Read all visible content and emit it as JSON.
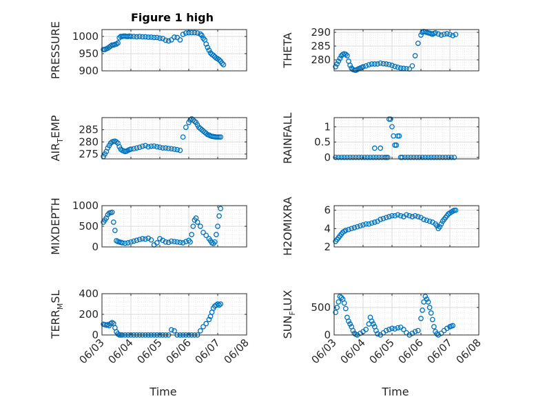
{
  "figure": {
    "title": "Figure 1 high"
  },
  "colors": {
    "marker": "#0072BD",
    "axis": "#262626",
    "grid": "#d9d9d9",
    "background": "#ffffff"
  },
  "chart_data": [
    {
      "type": "scatter",
      "id": "pressure",
      "ylabel": "PRESSURE",
      "ylim": [
        900,
        1020
      ],
      "yticks": [
        900,
        950,
        1000
      ],
      "yticklabels": [
        "900",
        "950",
        "1000"
      ],
      "xlim": [
        "06/03",
        "06/08"
      ],
      "xticks": [
        "06/03",
        "06/04",
        "06/05",
        "06/06",
        "06/07",
        "06/08"
      ],
      "xticks_labeled": false,
      "x": [
        3.05,
        3.1,
        3.15,
        3.2,
        3.25,
        3.3,
        3.35,
        3.4,
        3.45,
        3.5,
        3.55,
        3.6,
        3.65,
        3.7,
        3.75,
        3.8,
        3.85,
        3.9,
        3.95,
        4.0,
        4.1,
        4.2,
        4.3,
        4.4,
        4.5,
        4.6,
        4.7,
        4.8,
        4.9,
        5.0,
        5.1,
        5.2,
        5.3,
        5.4,
        5.5,
        5.6,
        5.7,
        5.8,
        5.9,
        6.0,
        6.1,
        6.2,
        6.3,
        6.4,
        6.45,
        6.5,
        6.55,
        6.6,
        6.65,
        6.7,
        6.75,
        6.8,
        6.85,
        6.9,
        6.95,
        7.0,
        7.05,
        7.1,
        7.15,
        7.2
      ],
      "y": [
        962,
        962,
        964,
        966,
        969,
        972,
        975,
        975,
        977,
        978,
        981,
        996,
        1000,
        1000,
        1001,
        1001,
        1000,
        1000,
        1001,
        1000,
        1000,
        999,
        1000,
        999,
        999,
        998,
        998,
        997,
        997,
        995,
        994,
        989,
        987,
        990,
        998,
        997,
        990,
        1006,
        1010,
        1011,
        1011,
        1011,
        1010,
        1007,
        1003,
        995,
        990,
        978,
        968,
        960,
        952,
        948,
        945,
        941,
        937,
        935,
        932,
        928,
        922,
        918
      ]
    },
    {
      "type": "scatter",
      "id": "theta",
      "ylabel": "THETA",
      "ylim": [
        276,
        291
      ],
      "yticks": [
        280,
        285,
        290
      ],
      "yticklabels": [
        "280",
        "285",
        "290"
      ],
      "xlim": [
        "06/03",
        "06/08"
      ],
      "xticks": [
        "06/03",
        "06/04",
        "06/05",
        "06/06",
        "06/07",
        "06/08"
      ],
      "xticks_labeled": false,
      "x": [
        3.05,
        3.1,
        3.15,
        3.2,
        3.25,
        3.3,
        3.35,
        3.4,
        3.45,
        3.5,
        3.55,
        3.6,
        3.65,
        3.7,
        3.75,
        3.8,
        3.85,
        3.9,
        3.95,
        4.0,
        4.1,
        4.2,
        4.3,
        4.4,
        4.5,
        4.6,
        4.7,
        4.8,
        4.9,
        5.0,
        5.1,
        5.2,
        5.3,
        5.4,
        5.5,
        5.6,
        5.7,
        5.8,
        5.9,
        6.0,
        6.05,
        6.1,
        6.15,
        6.2,
        6.25,
        6.3,
        6.35,
        6.4,
        6.45,
        6.5,
        6.6,
        6.7,
        6.8,
        6.9,
        7.0,
        7.1,
        7.2
      ],
      "y": [
        277.5,
        278.5,
        279.5,
        280.5,
        281.5,
        282,
        282.2,
        282,
        281.5,
        279.5,
        278,
        277,
        276.5,
        276.3,
        276.2,
        276.5,
        276.8,
        277,
        277.2,
        277.5,
        277.8,
        278.2,
        278.5,
        278.5,
        278.5,
        278.8,
        278.6,
        278.5,
        278.3,
        278,
        277.6,
        277.3,
        277,
        276.9,
        276.8,
        276.7,
        277.8,
        281.5,
        286,
        289,
        290,
        290.3,
        290.2,
        290,
        289.8,
        289.7,
        289.5,
        289.3,
        289.6,
        289.8,
        289.4,
        289,
        289.3,
        289.5,
        289.2,
        288.8,
        289.2
      ]
    },
    {
      "type": "scatter",
      "id": "air_temp",
      "ylabel": "AIR_TEMP",
      "ylim": [
        273,
        290
      ],
      "yticks": [
        275,
        280,
        285
      ],
      "yticklabels": [
        "275",
        "280",
        "285"
      ],
      "xlim": [
        "06/03",
        "06/08"
      ],
      "xticks": [
        "06/03",
        "06/04",
        "06/05",
        "06/06",
        "06/07",
        "06/08"
      ],
      "xticks_labeled": false,
      "x": [
        3.05,
        3.1,
        3.15,
        3.2,
        3.25,
        3.3,
        3.35,
        3.4,
        3.45,
        3.5,
        3.55,
        3.6,
        3.65,
        3.7,
        3.75,
        3.8,
        3.85,
        3.9,
        3.95,
        4.0,
        4.1,
        4.2,
        4.3,
        4.4,
        4.5,
        4.6,
        4.7,
        4.8,
        4.9,
        5.0,
        5.1,
        5.2,
        5.3,
        5.4,
        5.5,
        5.6,
        5.7,
        5.8,
        5.9,
        6.0,
        6.05,
        6.1,
        6.15,
        6.2,
        6.25,
        6.3,
        6.35,
        6.4,
        6.45,
        6.5,
        6.55,
        6.6,
        6.65,
        6.7,
        6.75,
        6.8,
        6.85,
        6.9,
        6.95,
        7.0,
        7.05,
        7.1
      ],
      "y": [
        274,
        275,
        276,
        277.5,
        278.5,
        279.5,
        280,
        280.2,
        280.3,
        280,
        279.5,
        278,
        277,
        276.5,
        276.3,
        276,
        276.2,
        276.5,
        276.8,
        277,
        277.2,
        277.5,
        277.8,
        278.2,
        278.5,
        278,
        278.2,
        278.3,
        278,
        277.8,
        277.5,
        277.5,
        277.3,
        277.2,
        277,
        276.8,
        276.5,
        282,
        286,
        288,
        289,
        289.5,
        289,
        288.5,
        288,
        287,
        286,
        285.5,
        285,
        284.5,
        284,
        283.5,
        283,
        282.8,
        282.5,
        282.3,
        282.2,
        282.1,
        282,
        282,
        282,
        282
      ]
    },
    {
      "type": "scatter",
      "id": "rainfall",
      "ylabel": "RAINFALL",
      "ylim": [
        -0.05,
        1.3
      ],
      "yticks": [
        0,
        0.5,
        1
      ],
      "yticklabels": [
        "0",
        "0.5",
        "1"
      ],
      "xlim": [
        "06/03",
        "06/08"
      ],
      "xticks": [
        "06/03",
        "06/04",
        "06/05",
        "06/06",
        "06/07",
        "06/08"
      ],
      "xticks_labeled": false,
      "x": [
        3.05,
        3.15,
        3.25,
        3.35,
        3.45,
        3.55,
        3.65,
        3.75,
        3.85,
        3.95,
        4.05,
        4.15,
        4.25,
        4.35,
        4.4,
        4.45,
        4.55,
        4.6,
        4.65,
        4.75,
        4.8,
        4.85,
        4.9,
        4.95,
        5.0,
        5.05,
        5.1,
        5.15,
        5.2,
        5.25,
        5.3,
        5.35,
        5.45,
        5.55,
        5.65,
        5.75,
        5.85,
        5.95,
        6.05,
        6.15,
        6.25,
        6.35,
        6.45,
        6.55,
        6.65,
        6.75,
        6.85,
        6.95,
        7.05,
        7.15
      ],
      "y": [
        0,
        0,
        0,
        0,
        0,
        0,
        0,
        0,
        0,
        0,
        0,
        0,
        0,
        0,
        0.3,
        0,
        0,
        0.3,
        0,
        0,
        0,
        0,
        1.25,
        1.25,
        1.0,
        0.7,
        0.4,
        0.4,
        0.7,
        0.7,
        0,
        0,
        0,
        0,
        0,
        0,
        0,
        0,
        0,
        0,
        0,
        0,
        0,
        0,
        0,
        0,
        0,
        0,
        0,
        0
      ]
    },
    {
      "type": "scatter",
      "id": "mixdepth",
      "ylabel": "MIXDEPTH",
      "ylim": [
        0,
        1000
      ],
      "yticks": [
        0,
        500,
        1000
      ],
      "yticklabels": [
        "0",
        "500",
        "1000"
      ],
      "xlim": [
        "06/03",
        "06/08"
      ],
      "xticks": [
        "06/03",
        "06/04",
        "06/05",
        "06/06",
        "06/07",
        "06/08"
      ],
      "xticks_labeled": false,
      "x": [
        3.05,
        3.1,
        3.15,
        3.2,
        3.25,
        3.3,
        3.35,
        3.4,
        3.45,
        3.5,
        3.55,
        3.6,
        3.65,
        3.7,
        3.8,
        3.9,
        4.0,
        4.1,
        4.2,
        4.3,
        4.4,
        4.5,
        4.6,
        4.7,
        4.8,
        4.9,
        5.0,
        5.1,
        5.2,
        5.3,
        5.4,
        5.5,
        5.6,
        5.7,
        5.8,
        5.9,
        6.0,
        6.05,
        6.1,
        6.15,
        6.2,
        6.25,
        6.3,
        6.4,
        6.5,
        6.6,
        6.7,
        6.75,
        6.8,
        6.85,
        6.9,
        6.95,
        7.0,
        7.05,
        7.1
      ],
      "y": [
        600,
        650,
        700,
        780,
        820,
        830,
        840,
        600,
        400,
        150,
        130,
        120,
        110,
        100,
        90,
        100,
        120,
        140,
        160,
        180,
        200,
        190,
        210,
        170,
        50,
        100,
        200,
        160,
        120,
        110,
        140,
        130,
        120,
        110,
        100,
        130,
        160,
        120,
        300,
        500,
        650,
        700,
        600,
        500,
        350,
        280,
        200,
        150,
        100,
        80,
        120,
        300,
        500,
        750,
        930
      ]
    },
    {
      "type": "scatter",
      "id": "h2omixra",
      "ylabel": "H2OMIXRA",
      "ylim": [
        2,
        6.5
      ],
      "yticks": [
        2,
        4,
        6
      ],
      "yticklabels": [
        "2",
        "4",
        "6"
      ],
      "xlim": [
        "06/03",
        "06/08"
      ],
      "xticks": [
        "06/03",
        "06/04",
        "06/05",
        "06/06",
        "06/07",
        "06/08"
      ],
      "xticks_labeled": false,
      "x": [
        3.05,
        3.1,
        3.15,
        3.2,
        3.25,
        3.3,
        3.35,
        3.4,
        3.5,
        3.6,
        3.7,
        3.8,
        3.9,
        4.0,
        4.1,
        4.2,
        4.3,
        4.4,
        4.5,
        4.6,
        4.7,
        4.8,
        4.9,
        5.0,
        5.1,
        5.2,
        5.3,
        5.4,
        5.5,
        5.6,
        5.7,
        5.8,
        5.9,
        6.0,
        6.1,
        6.2,
        6.3,
        6.4,
        6.5,
        6.55,
        6.6,
        6.65,
        6.7,
        6.75,
        6.8,
        6.85,
        6.9,
        6.95,
        7.0,
        7.05,
        7.1,
        7.15,
        7.2
      ],
      "y": [
        2.6,
        2.8,
        3.0,
        3.2,
        3.4,
        3.6,
        3.7,
        3.8,
        3.9,
        4.0,
        4.1,
        4.2,
        4.3,
        4.4,
        4.5,
        4.5,
        4.6,
        4.7,
        4.8,
        5.0,
        5.1,
        5.2,
        5.3,
        5.4,
        5.4,
        5.5,
        5.4,
        5.3,
        5.5,
        5.4,
        5.3,
        5.4,
        5.3,
        5.2,
        5.0,
        4.9,
        4.8,
        4.7,
        4.5,
        4.3,
        4.0,
        4.2,
        4.5,
        4.8,
        5.0,
        5.2,
        5.4,
        5.6,
        5.7,
        5.8,
        5.9,
        6.0,
        6.0
      ]
    },
    {
      "type": "scatter",
      "id": "terr_msl",
      "ylabel": "TERR_MSL",
      "ylim": [
        0,
        400
      ],
      "yticks": [
        0,
        200,
        400
      ],
      "yticklabels": [
        "0",
        "200",
        "400"
      ],
      "xlim": [
        "06/03",
        "06/08"
      ],
      "xticks": [
        "06/03",
        "06/04",
        "06/05",
        "06/06",
        "06/07",
        "06/08"
      ],
      "xticklabels": [
        "06/03",
        "06/04",
        "06/05",
        "06/06",
        "06/07",
        "06/08"
      ],
      "xlabel": "Time",
      "xticks_labeled": true,
      "x": [
        3.05,
        3.1,
        3.15,
        3.2,
        3.25,
        3.3,
        3.35,
        3.4,
        3.45,
        3.5,
        3.55,
        3.6,
        3.65,
        3.7,
        3.8,
        3.9,
        4.0,
        4.1,
        4.2,
        4.3,
        4.4,
        4.5,
        4.6,
        4.7,
        4.8,
        4.9,
        5.0,
        5.1,
        5.2,
        5.3,
        5.4,
        5.5,
        5.6,
        5.7,
        5.8,
        5.9,
        6.0,
        6.1,
        6.2,
        6.3,
        6.4,
        6.5,
        6.6,
        6.7,
        6.75,
        6.8,
        6.85,
        6.9,
        6.95,
        7.0,
        7.05,
        7.1
      ],
      "y": [
        105,
        100,
        95,
        100,
        90,
        110,
        120,
        110,
        70,
        30,
        10,
        0,
        0,
        0,
        0,
        0,
        0,
        0,
        0,
        0,
        0,
        0,
        0,
        0,
        0,
        0,
        0,
        0,
        0,
        0,
        50,
        40,
        0,
        0,
        0,
        0,
        0,
        0,
        0,
        0,
        40,
        80,
        110,
        150,
        180,
        220,
        260,
        280,
        290,
        300,
        290,
        300
      ]
    },
    {
      "type": "scatter",
      "id": "sun_flux",
      "ylabel": "SUN_FLUX",
      "ylim": [
        0,
        750
      ],
      "yticks": [
        0,
        500
      ],
      "yticklabels": [
        "0",
        "500"
      ],
      "xlim": [
        "06/03",
        "06/08"
      ],
      "xticks": [
        "06/03",
        "06/04",
        "06/05",
        "06/06",
        "06/07",
        "06/08"
      ],
      "xticklabels": [
        "06/03",
        "06/04",
        "06/05",
        "06/06",
        "06/07",
        "06/08"
      ],
      "xlabel": "Time",
      "xticks_labeled": true,
      "x": [
        3.05,
        3.1,
        3.15,
        3.2,
        3.25,
        3.3,
        3.35,
        3.4,
        3.45,
        3.5,
        3.55,
        3.6,
        3.65,
        3.7,
        3.75,
        3.8,
        3.9,
        4.0,
        4.1,
        4.2,
        4.25,
        4.3,
        4.35,
        4.4,
        4.45,
        4.5,
        4.6,
        4.7,
        4.8,
        4.9,
        5.0,
        5.1,
        5.2,
        5.3,
        5.4,
        5.5,
        5.6,
        5.7,
        5.8,
        5.9,
        6.0,
        6.05,
        6.1,
        6.15,
        6.2,
        6.25,
        6.3,
        6.35,
        6.4,
        6.45,
        6.5,
        6.55,
        6.6,
        6.7,
        6.8,
        6.9,
        7.0,
        7.05,
        7.1
      ],
      "y": [
        410,
        500,
        600,
        700,
        680,
        650,
        580,
        480,
        320,
        250,
        200,
        150,
        80,
        30,
        10,
        0,
        30,
        60,
        100,
        200,
        320,
        250,
        200,
        150,
        80,
        20,
        0,
        40,
        80,
        100,
        120,
        110,
        130,
        140,
        100,
        40,
        0,
        30,
        60,
        80,
        300,
        450,
        600,
        700,
        650,
        600,
        500,
        400,
        280,
        150,
        60,
        20,
        0,
        30,
        80,
        120,
        150,
        160,
        170
      ]
    }
  ]
}
